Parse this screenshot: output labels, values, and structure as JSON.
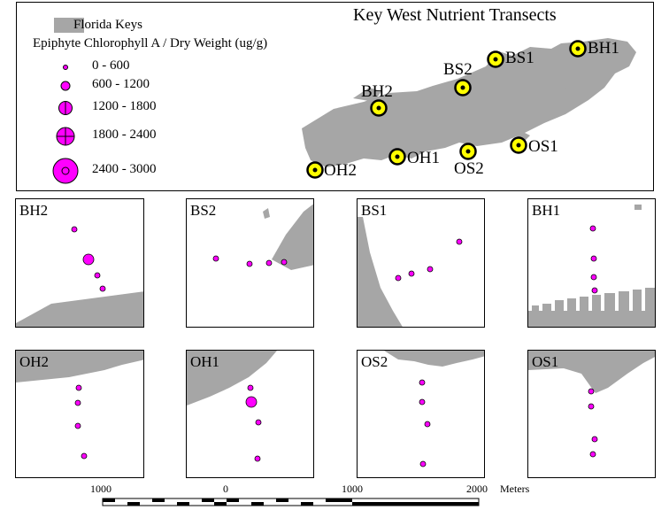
{
  "map_title": "Key West Nutrient Transects",
  "legend": {
    "keys_label": "Florida Keys",
    "title": "Epiphyte Chlorophyll A / Dry Weight (ug/g)",
    "classes": [
      {
        "range": "0 - 600"
      },
      {
        "range": "600 - 1200"
      },
      {
        "range": "1200 - 1800"
      },
      {
        "range": "1800 - 2400"
      },
      {
        "range": "2400 - 3000"
      }
    ]
  },
  "stations": [
    "BH1",
    "BS1",
    "BS2",
    "BH2",
    "OH1",
    "OH2",
    "OS2",
    "OS1"
  ],
  "panels": [
    "BH2",
    "BS2",
    "BS1",
    "BH1",
    "OH2",
    "OH1",
    "OS2",
    "OS1"
  ],
  "panel_sample_classes": {
    "BH2": [
      "0 - 600",
      "1200 - 1800",
      "0 - 600",
      "0 - 600"
    ],
    "BS2": [
      "0 - 600",
      "0 - 600",
      "0 - 600",
      "0 - 600"
    ],
    "BS1": [
      "0 - 600",
      "0 - 600",
      "0 - 600",
      "0 - 600"
    ],
    "BH1": [
      "0 - 600",
      "0 - 600",
      "0 - 600",
      "0 - 600"
    ],
    "OH2": [
      "0 - 600",
      "0 - 600",
      "0 - 600",
      "0 - 600"
    ],
    "OH1": [
      "0 - 600",
      "1200 - 1800",
      "0 - 600",
      "0 - 600"
    ],
    "OS2": [
      "0 - 600",
      "0 - 600",
      "0 - 600",
      "0 - 600"
    ],
    "OS1": [
      "0 - 600",
      "0 - 600",
      "0 - 600",
      "0 - 600"
    ]
  },
  "scale_bar": {
    "labels": [
      "1000",
      "0",
      "1000",
      "2000"
    ],
    "units": "Meters"
  },
  "colors": {
    "land": "#a6a6a6",
    "sample_fill": "#ff00ff",
    "station_fill": "#ffff00",
    "station_ring": "#000000"
  }
}
